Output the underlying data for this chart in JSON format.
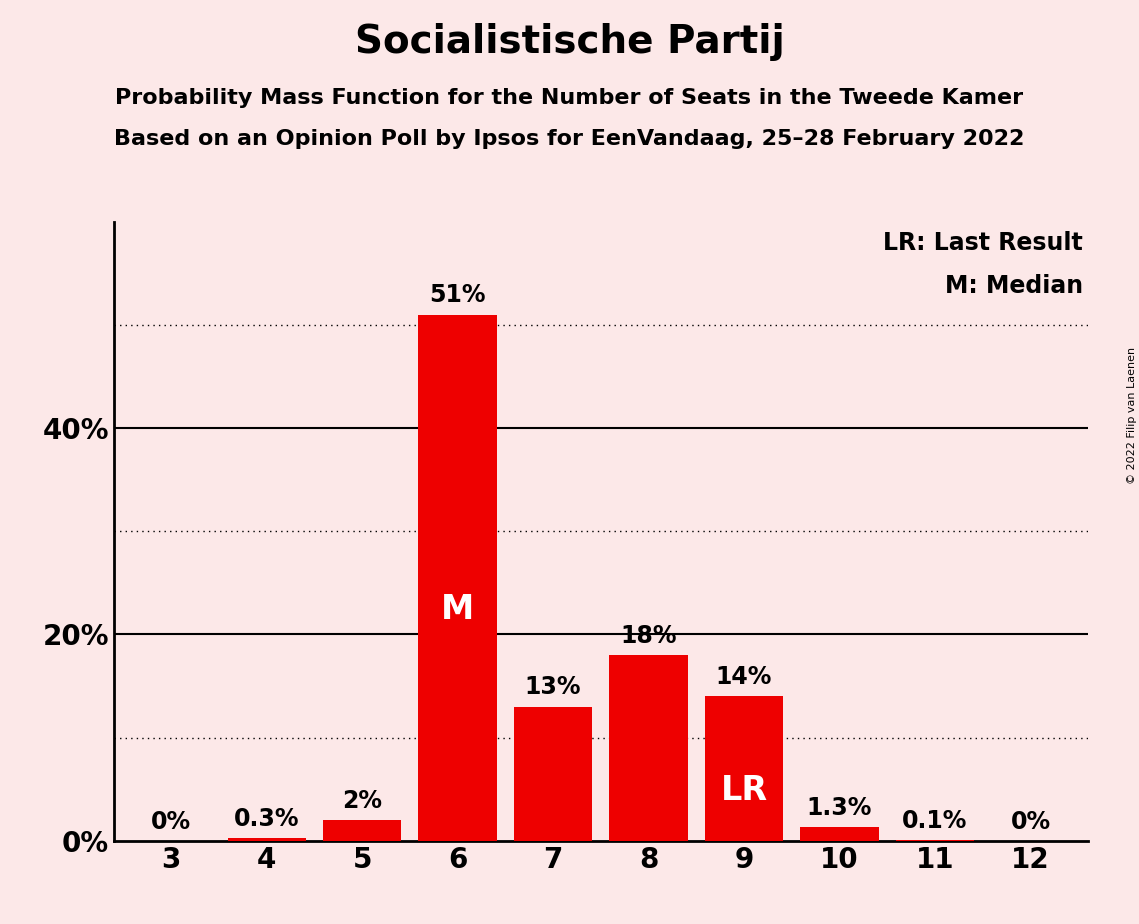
{
  "title": "Socialistische Partij",
  "subtitle1": "Probability Mass Function for the Number of Seats in the Tweede Kamer",
  "subtitle2": "Based on an Opinion Poll by Ipsos for EenVandaag, 25–28 February 2022",
  "copyright": "© 2022 Filip van Laenen",
  "categories": [
    3,
    4,
    5,
    6,
    7,
    8,
    9,
    10,
    11,
    12
  ],
  "values": [
    0,
    0.3,
    2,
    51,
    13,
    18,
    14,
    1.3,
    0.1,
    0
  ],
  "labels": [
    "0%",
    "0.3%",
    "2%",
    "51%",
    "13%",
    "18%",
    "14%",
    "1.3%",
    "0.1%",
    "0%"
  ],
  "bar_color": "#ee0000",
  "background_color": "#fce8e8",
  "median_bar": 6,
  "lr_bar": 9,
  "median_label": "M",
  "lr_label": "LR",
  "legend_lr": "LR: Last Result",
  "legend_m": "M: Median",
  "yticks": [
    0,
    20,
    40
  ],
  "ytick_labels": [
    "0%",
    "20%",
    "40%"
  ],
  "ylim": [
    0,
    60
  ],
  "dotted_lines": [
    10,
    30,
    50
  ],
  "solid_lines": [
    20,
    40
  ],
  "title_fontsize": 28,
  "subtitle_fontsize": 16,
  "bar_label_fontsize": 17,
  "inner_label_fontsize": 24,
  "legend_fontsize": 17,
  "ytick_fontsize": 20,
  "xtick_fontsize": 20,
  "copyright_fontsize": 8
}
